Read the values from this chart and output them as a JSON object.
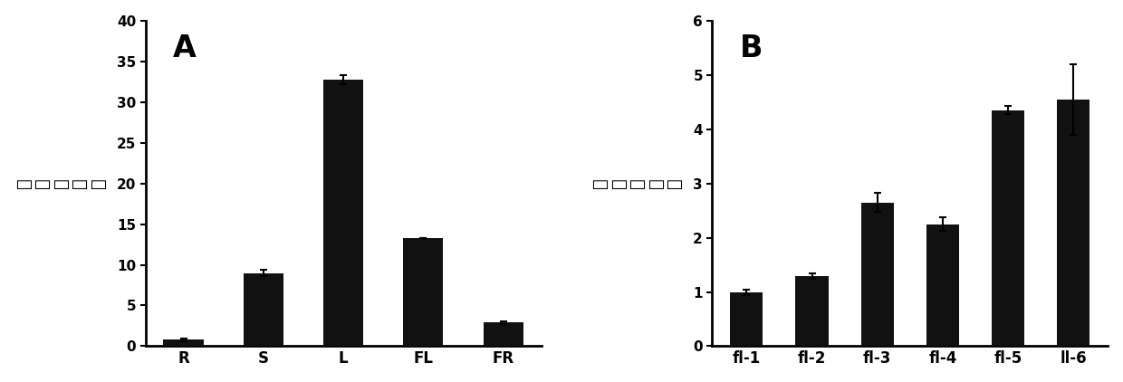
{
  "panel_A": {
    "categories": [
      "R",
      "S",
      "L",
      "FL",
      "FR"
    ],
    "values": [
      0.8,
      9.0,
      32.7,
      13.3,
      2.9
    ],
    "errors": [
      0.15,
      0.35,
      0.55,
      0.0,
      0.18
    ],
    "ylim": [
      0,
      40
    ],
    "yticks": [
      0,
      5,
      10,
      15,
      20,
      25,
      30,
      35,
      40
    ],
    "ylabel_chars": [
      "相",
      "对",
      "表",
      "达",
      "量"
    ],
    "label": "A"
  },
  "panel_B": {
    "categories": [
      "fl-1",
      "fl-2",
      "fl-3",
      "fl-4",
      "fl-5",
      "ll-6"
    ],
    "values": [
      1.0,
      1.3,
      2.65,
      2.25,
      4.35,
      4.55
    ],
    "errors": [
      0.05,
      0.05,
      0.18,
      0.12,
      0.08,
      0.65
    ],
    "ylim": [
      0,
      6
    ],
    "yticks": [
      0,
      1,
      2,
      3,
      4,
      5,
      6
    ],
    "ylabel_chars": [
      "相",
      "对",
      "表",
      "达",
      "量"
    ],
    "label": "B"
  },
  "bar_color": "#111111",
  "bar_width": 0.5,
  "background_color": "#ffffff",
  "font_color": "#000000"
}
